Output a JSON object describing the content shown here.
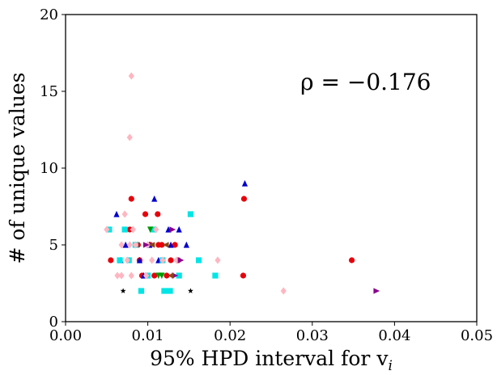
{
  "chart_data": {
    "type": "scatter",
    "title": "",
    "xlabel": "95% HPD interval for v",
    "xlabel_subscript": "i",
    "ylabel": "# of unique values",
    "xlim": [
      0,
      0.05
    ],
    "ylim": [
      0,
      20
    ],
    "x_ticks": [
      "0.00",
      "0.01",
      "0.02",
      "0.03",
      "0.04",
      "0.05"
    ],
    "y_ticks": [
      "0",
      "5",
      "10",
      "15",
      "20"
    ],
    "grid": false,
    "annotation": "ρ = −0.176",
    "series": [
      {
        "marker": "circle",
        "color": "#e8000b",
        "points": [
          [
            0.0055,
            4
          ],
          [
            0.0078,
            6
          ],
          [
            0.0088,
            5
          ],
          [
            0.0093,
            3
          ],
          [
            0.0097,
            7
          ],
          [
            0.0103,
            5
          ],
          [
            0.0108,
            3
          ],
          [
            0.0112,
            7
          ],
          [
            0.0117,
            5
          ],
          [
            0.0123,
            3
          ],
          [
            0.0128,
            4
          ],
          [
            0.0133,
            5
          ],
          [
            0.0137,
            4
          ],
          [
            0.0217,
            8
          ],
          [
            0.0216,
            3
          ],
          [
            0.0348,
            4
          ],
          [
            0.008,
            8
          ],
          [
            0.0113,
            5
          ],
          [
            0.009,
            4
          ]
        ]
      },
      {
        "marker": "triangle-up",
        "color": "#0000cc",
        "points": [
          [
            0.0062,
            7
          ],
          [
            0.0067,
            4
          ],
          [
            0.0073,
            5
          ],
          [
            0.009,
            4
          ],
          [
            0.0095,
            3
          ],
          [
            0.0102,
            5
          ],
          [
            0.0108,
            8
          ],
          [
            0.0113,
            4
          ],
          [
            0.0128,
            5
          ],
          [
            0.0138,
            6
          ],
          [
            0.0147,
            5
          ],
          [
            0.0218,
            9
          ],
          [
            0.0125,
            6
          ]
        ]
      },
      {
        "marker": "square",
        "color": "#00e5e5",
        "points": [
          [
            0.0053,
            6
          ],
          [
            0.0066,
            4
          ],
          [
            0.0072,
            6
          ],
          [
            0.0077,
            4
          ],
          [
            0.0092,
            2
          ],
          [
            0.0107,
            6
          ],
          [
            0.0118,
            4
          ],
          [
            0.0127,
            2
          ],
          [
            0.0138,
            3
          ],
          [
            0.0152,
            7
          ],
          [
            0.0162,
            4
          ],
          [
            0.0182,
            3
          ],
          [
            0.01,
            3
          ],
          [
            0.0085,
            5
          ],
          [
            0.012,
            2
          ]
        ]
      },
      {
        "marker": "diamond",
        "color": "#ffb6c1",
        "points": [
          [
            0.005,
            6
          ],
          [
            0.0063,
            3
          ],
          [
            0.0068,
            5
          ],
          [
            0.0072,
            7
          ],
          [
            0.0075,
            4
          ],
          [
            0.0078,
            5
          ],
          [
            0.008,
            3
          ],
          [
            0.0078,
            12
          ],
          [
            0.008,
            16
          ],
          [
            0.0085,
            5
          ],
          [
            0.0098,
            3
          ],
          [
            0.0105,
            4
          ],
          [
            0.011,
            6
          ],
          [
            0.0118,
            4
          ],
          [
            0.013,
            3
          ],
          [
            0.0135,
            4
          ],
          [
            0.0185,
            4
          ],
          [
            0.0265,
            2
          ],
          [
            0.0068,
            3
          ],
          [
            0.01,
            5
          ],
          [
            0.0082,
            6
          ]
        ]
      },
      {
        "marker": "triangle-down",
        "color": "#009900",
        "points": [
          [
            0.0103,
            6
          ],
          [
            0.0113,
            3
          ],
          [
            0.0117,
            3
          ]
        ]
      },
      {
        "marker": "triangle-right",
        "color": "#8b008b",
        "points": [
          [
            0.0098,
            5
          ],
          [
            0.013,
            6
          ],
          [
            0.014,
            4
          ],
          [
            0.0378,
            2
          ],
          [
            0.0133,
            3
          ]
        ]
      },
      {
        "marker": "triangle-left",
        "color": "#8b4513",
        "points": [
          [
            0.0122,
            5
          ],
          [
            0.0105,
            5
          ],
          [
            0.0128,
            3
          ]
        ]
      },
      {
        "marker": "star",
        "color": "#000000",
        "points": [
          [
            0.007,
            2
          ],
          [
            0.0152,
            2
          ]
        ]
      }
    ]
  }
}
